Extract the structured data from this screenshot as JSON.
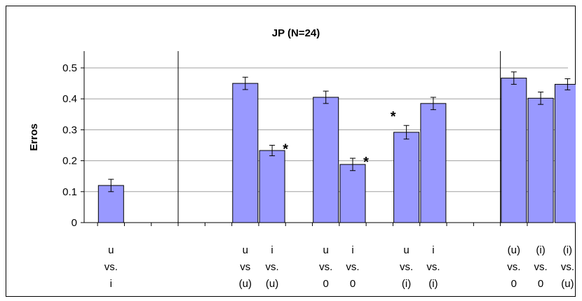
{
  "chart_data": {
    "type": "bar",
    "title": "JP (N=24)",
    "ylabel": "Erros",
    "xlabel": "",
    "ylim": [
      0,
      0.55
    ],
    "yticks": [
      0,
      0.1,
      0.2,
      0.3,
      0.4,
      0.5
    ],
    "ytick_labels": [
      "0",
      "0.1",
      "0.2",
      "0.3",
      "0.4",
      "0.5"
    ],
    "grid": true,
    "legend": "none",
    "bar_color": "#9999ff",
    "categories": [
      [
        "u",
        "vs.",
        "i"
      ],
      [
        "u",
        "vs",
        "(u)"
      ],
      [
        "i",
        "vs.",
        "(u)"
      ],
      [
        "u",
        "vs.",
        "0"
      ],
      [
        "i",
        "vs.",
        "0"
      ],
      [
        "u",
        "vs.",
        "(i)"
      ],
      [
        "i",
        "vs.",
        "(i)"
      ],
      [
        "(u)",
        "vs.",
        "0"
      ],
      [
        "(i)",
        "vs.",
        "0"
      ],
      [
        "(i)",
        "vs.",
        "(u)"
      ]
    ],
    "values": [
      0.12,
      0.45,
      0.233,
      0.405,
      0.188,
      0.292,
      0.385,
      0.467,
      0.402,
      0.447
    ],
    "errors": [
      0.02,
      0.02,
      0.017,
      0.02,
      0.02,
      0.022,
      0.02,
      0.02,
      0.02,
      0.018
    ],
    "significance_markers": [
      "",
      "",
      "*",
      "",
      "*",
      "*",
      "",
      "",
      "",
      ""
    ]
  }
}
